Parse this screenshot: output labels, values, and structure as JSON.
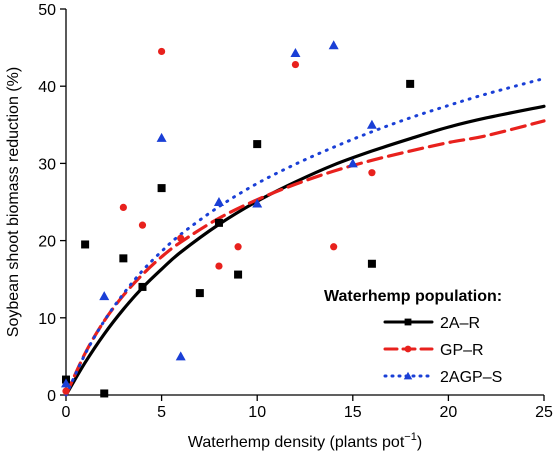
{
  "chart_data": {
    "type": "scatter",
    "xlabel": "Waterhemp density (plants pot",
    "xlabel_sup": "−1",
    "xlabel_close": ")",
    "ylabel": "Soybean shoot biomass reduction (%)",
    "xlim": [
      0,
      25
    ],
    "ylim": [
      0,
      50
    ],
    "x_ticks": [
      0,
      5,
      10,
      15,
      20,
      25
    ],
    "y_ticks": [
      0,
      10,
      20,
      30,
      40,
      50
    ],
    "grid": false,
    "legend_title": "Waterhemp population:",
    "legend_placement": "bottom-right",
    "series": [
      {
        "name": "2A–R",
        "color": "#000000",
        "marker": "square",
        "line_style": "solid",
        "points": [
          [
            0,
            2
          ],
          [
            1,
            19.5
          ],
          [
            2,
            0.2
          ],
          [
            3,
            17.7
          ],
          [
            4,
            14
          ],
          [
            5,
            26.8
          ],
          [
            7,
            13.2
          ],
          [
            8,
            22.3
          ],
          [
            9,
            15.6
          ],
          [
            10,
            32.5
          ],
          [
            16,
            17
          ],
          [
            18,
            40.3
          ]
        ],
        "fit_curve": [
          [
            0,
            0
          ],
          [
            1,
            4.2
          ],
          [
            2,
            7.9
          ],
          [
            3,
            11.1
          ],
          [
            4,
            13.9
          ],
          [
            5,
            16.3
          ],
          [
            6,
            18.5
          ],
          [
            8,
            22.1
          ],
          [
            10,
            25.1
          ],
          [
            12,
            27.6
          ],
          [
            14,
            29.8
          ],
          [
            16,
            31.6
          ],
          [
            18,
            33.2
          ],
          [
            20,
            34.7
          ],
          [
            22,
            35.9
          ],
          [
            25,
            37.4
          ]
        ]
      },
      {
        "name": "GP–R",
        "color": "#e8211d",
        "marker": "circle",
        "line_style": "dashed",
        "points": [
          [
            0,
            0.5
          ],
          [
            3,
            24.3
          ],
          [
            4,
            22
          ],
          [
            5,
            44.5
          ],
          [
            6,
            20.3
          ],
          [
            8,
            16.7
          ],
          [
            9,
            19.2
          ],
          [
            12,
            42.8
          ],
          [
            14,
            19.2
          ],
          [
            16,
            28.8
          ]
        ],
        "fit_curve": [
          [
            0,
            0
          ],
          [
            1,
            5.4
          ],
          [
            2,
            9.6
          ],
          [
            3,
            12.9
          ],
          [
            4,
            15.6
          ],
          [
            5,
            17.9
          ],
          [
            6,
            19.8
          ],
          [
            8,
            22.9
          ],
          [
            10,
            25.3
          ],
          [
            12,
            27.3
          ],
          [
            14,
            29
          ],
          [
            16,
            30.4
          ],
          [
            18,
            31.6
          ],
          [
            20,
            32.7
          ],
          [
            22,
            33.6
          ],
          [
            25,
            35.5
          ]
        ]
      },
      {
        "name": "2AGP–S",
        "color": "#1a3fd6",
        "marker": "triangle",
        "line_style": "dotted",
        "points": [
          [
            0,
            1.5
          ],
          [
            2,
            12.8
          ],
          [
            5,
            33.3
          ],
          [
            6,
            5
          ],
          [
            8,
            25
          ],
          [
            10,
            24.8
          ],
          [
            12,
            44.3
          ],
          [
            14,
            45.3
          ],
          [
            15,
            30
          ],
          [
            16,
            35
          ]
        ],
        "fit_curve": [
          [
            0,
            0
          ],
          [
            1,
            5.3
          ],
          [
            2,
            9.6
          ],
          [
            3,
            13.1
          ],
          [
            4,
            16.1
          ],
          [
            5,
            18.6
          ],
          [
            6,
            20.8
          ],
          [
            8,
            24.4
          ],
          [
            10,
            27.4
          ],
          [
            12,
            29.9
          ],
          [
            14,
            32.1
          ],
          [
            16,
            34.1
          ],
          [
            18,
            35.9
          ],
          [
            20,
            37.5
          ],
          [
            22,
            39
          ],
          [
            25,
            41
          ]
        ]
      }
    ]
  }
}
